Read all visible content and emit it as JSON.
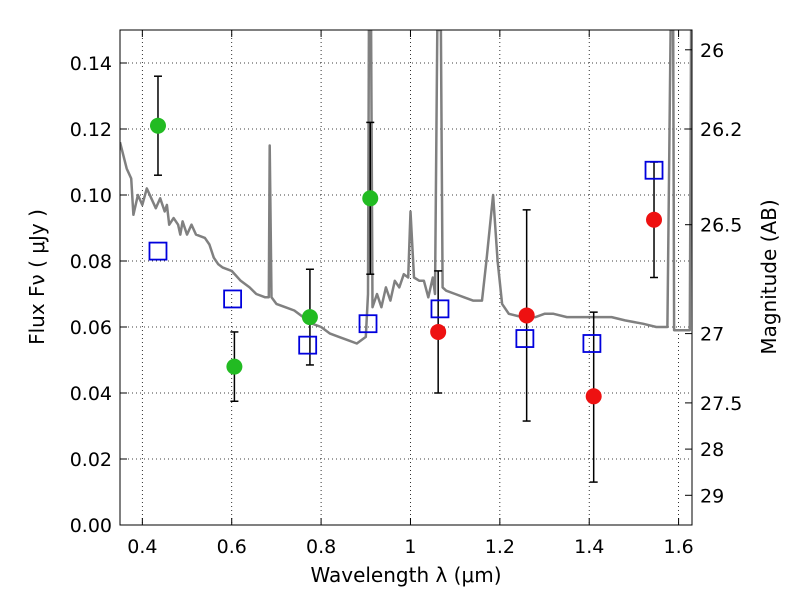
{
  "chart_data": {
    "type": "scatter",
    "xlabel": "Wavelength  λ (μm)",
    "ylabel": "Flux  Fν  ( μJy )",
    "ylabel_right": "Magnitude (AB)",
    "xlim": [
      0.35,
      1.63
    ],
    "ylim": [
      0.0,
      0.15
    ],
    "grid": true,
    "x_ticks": [
      0.4,
      0.6,
      0.8,
      1.0,
      1.2,
      1.4,
      1.6
    ],
    "x_tick_labels": [
      "0.4",
      "0.6",
      "0.8",
      "1",
      "1.2",
      "1.4",
      "1.6"
    ],
    "y_ticks": [
      0.0,
      0.02,
      0.04,
      0.06,
      0.08,
      0.1,
      0.12,
      0.14
    ],
    "y_tick_labels": [
      "0.00",
      "0.02",
      "0.04",
      "0.06",
      "0.08",
      "0.10",
      "0.12",
      "0.14"
    ],
    "right_ticks": [
      {
        "flux": 0.144,
        "label": "26"
      },
      {
        "flux": 0.12,
        "label": "26.2"
      },
      {
        "flux": 0.091,
        "label": "26.5"
      },
      {
        "flux": 0.058,
        "label": "27"
      },
      {
        "flux": 0.037,
        "label": "27.5"
      },
      {
        "flux": 0.023,
        "label": "28"
      },
      {
        "flux": 0.009,
        "label": "29"
      }
    ],
    "series": [
      {
        "marker": "circle",
        "color": "#22bb22",
        "points": [
          {
            "x": 0.435,
            "y": 0.121,
            "lo": 0.106,
            "hi": 0.136
          },
          {
            "x": 0.606,
            "y": 0.048,
            "lo": 0.0375,
            "hi": 0.0585
          },
          {
            "x": 0.775,
            "y": 0.063,
            "lo": 0.0485,
            "hi": 0.0775
          },
          {
            "x": 0.91,
            "y": 0.099,
            "lo": 0.076,
            "hi": 0.122
          }
        ]
      },
      {
        "marker": "circle",
        "color": "#ee1111",
        "points": [
          {
            "x": 1.062,
            "y": 0.0585,
            "lo": 0.04,
            "hi": 0.077
          },
          {
            "x": 1.26,
            "y": 0.0635,
            "lo": 0.0315,
            "hi": 0.0955
          },
          {
            "x": 1.41,
            "y": 0.039,
            "lo": 0.013,
            "hi": 0.0645
          },
          {
            "x": 1.545,
            "y": 0.0925,
            "lo": 0.075,
            "hi": 0.11
          }
        ]
      },
      {
        "marker": "open-square",
        "color": "#0000dd",
        "points": [
          {
            "x": 0.435,
            "y": 0.083
          },
          {
            "x": 0.602,
            "y": 0.0685
          },
          {
            "x": 0.77,
            "y": 0.0545
          },
          {
            "x": 0.905,
            "y": 0.061
          },
          {
            "x": 1.066,
            "y": 0.0655
          },
          {
            "x": 1.256,
            "y": 0.0565
          },
          {
            "x": 1.406,
            "y": 0.055
          },
          {
            "x": 1.545,
            "y": 0.1075
          }
        ]
      },
      {
        "marker": "line",
        "color": "#808080",
        "points": [
          {
            "x": 0.35,
            "y": 0.116
          },
          {
            "x": 0.365,
            "y": 0.108
          },
          {
            "x": 0.375,
            "y": 0.105
          },
          {
            "x": 0.38,
            "y": 0.094
          },
          {
            "x": 0.39,
            "y": 0.1
          },
          {
            "x": 0.4,
            "y": 0.097
          },
          {
            "x": 0.41,
            "y": 0.102
          },
          {
            "x": 0.42,
            "y": 0.099
          },
          {
            "x": 0.43,
            "y": 0.096
          },
          {
            "x": 0.44,
            "y": 0.099
          },
          {
            "x": 0.45,
            "y": 0.095
          },
          {
            "x": 0.455,
            "y": 0.097
          },
          {
            "x": 0.46,
            "y": 0.091
          },
          {
            "x": 0.47,
            "y": 0.093
          },
          {
            "x": 0.48,
            "y": 0.091
          },
          {
            "x": 0.485,
            "y": 0.088
          },
          {
            "x": 0.49,
            "y": 0.092
          },
          {
            "x": 0.5,
            "y": 0.088
          },
          {
            "x": 0.51,
            "y": 0.091
          },
          {
            "x": 0.52,
            "y": 0.088
          },
          {
            "x": 0.54,
            "y": 0.087
          },
          {
            "x": 0.55,
            "y": 0.085
          },
          {
            "x": 0.56,
            "y": 0.081
          },
          {
            "x": 0.57,
            "y": 0.079
          },
          {
            "x": 0.58,
            "y": 0.078
          },
          {
            "x": 0.6,
            "y": 0.077
          },
          {
            "x": 0.62,
            "y": 0.074
          },
          {
            "x": 0.64,
            "y": 0.072
          },
          {
            "x": 0.655,
            "y": 0.07
          },
          {
            "x": 0.675,
            "y": 0.069
          },
          {
            "x": 0.683,
            "y": 0.069
          },
          {
            "x": 0.685,
            "y": 0.115
          },
          {
            "x": 0.689,
            "y": 0.069
          },
          {
            "x": 0.7,
            "y": 0.067
          },
          {
            "x": 0.72,
            "y": 0.066
          },
          {
            "x": 0.74,
            "y": 0.065
          },
          {
            "x": 0.76,
            "y": 0.063
          },
          {
            "x": 0.78,
            "y": 0.061
          },
          {
            "x": 0.8,
            "y": 0.06
          },
          {
            "x": 0.82,
            "y": 0.058
          },
          {
            "x": 0.84,
            "y": 0.057
          },
          {
            "x": 0.86,
            "y": 0.056
          },
          {
            "x": 0.88,
            "y": 0.055
          },
          {
            "x": 0.9,
            "y": 0.057
          },
          {
            "x": 0.905,
            "y": 0.07
          },
          {
            "x": 0.907,
            "y": 0.15
          },
          {
            "x": 0.912,
            "y": 0.15
          },
          {
            "x": 0.915,
            "y": 0.066
          },
          {
            "x": 0.925,
            "y": 0.07
          },
          {
            "x": 0.935,
            "y": 0.066
          },
          {
            "x": 0.945,
            "y": 0.072
          },
          {
            "x": 0.955,
            "y": 0.068
          },
          {
            "x": 0.965,
            "y": 0.074
          },
          {
            "x": 0.975,
            "y": 0.072
          },
          {
            "x": 0.985,
            "y": 0.076
          },
          {
            "x": 0.995,
            "y": 0.075
          },
          {
            "x": 1.0,
            "y": 0.095
          },
          {
            "x": 1.008,
            "y": 0.075
          },
          {
            "x": 1.02,
            "y": 0.074
          },
          {
            "x": 1.03,
            "y": 0.074
          },
          {
            "x": 1.04,
            "y": 0.069
          },
          {
            "x": 1.05,
            "y": 0.075
          },
          {
            "x": 1.055,
            "y": 0.07
          },
          {
            "x": 1.06,
            "y": 0.15
          },
          {
            "x": 1.068,
            "y": 0.15
          },
          {
            "x": 1.072,
            "y": 0.072
          },
          {
            "x": 1.08,
            "y": 0.071
          },
          {
            "x": 1.1,
            "y": 0.07
          },
          {
            "x": 1.12,
            "y": 0.069
          },
          {
            "x": 1.14,
            "y": 0.068
          },
          {
            "x": 1.16,
            "y": 0.068
          },
          {
            "x": 1.17,
            "y": 0.08
          },
          {
            "x": 1.185,
            "y": 0.1
          },
          {
            "x": 1.195,
            "y": 0.08
          },
          {
            "x": 1.205,
            "y": 0.067
          },
          {
            "x": 1.22,
            "y": 0.064
          },
          {
            "x": 1.25,
            "y": 0.063
          },
          {
            "x": 1.28,
            "y": 0.063
          },
          {
            "x": 1.3,
            "y": 0.064
          },
          {
            "x": 1.32,
            "y": 0.064
          },
          {
            "x": 1.35,
            "y": 0.063
          },
          {
            "x": 1.4,
            "y": 0.063
          },
          {
            "x": 1.45,
            "y": 0.063
          },
          {
            "x": 1.48,
            "y": 0.062
          },
          {
            "x": 1.52,
            "y": 0.061
          },
          {
            "x": 1.55,
            "y": 0.06
          },
          {
            "x": 1.575,
            "y": 0.06
          },
          {
            "x": 1.582,
            "y": 0.15
          },
          {
            "x": 1.588,
            "y": 0.15
          },
          {
            "x": 1.59,
            "y": 0.059
          },
          {
            "x": 1.61,
            "y": 0.059
          },
          {
            "x": 1.625,
            "y": 0.059
          },
          {
            "x": 1.628,
            "y": 0.15
          }
        ]
      }
    ]
  }
}
